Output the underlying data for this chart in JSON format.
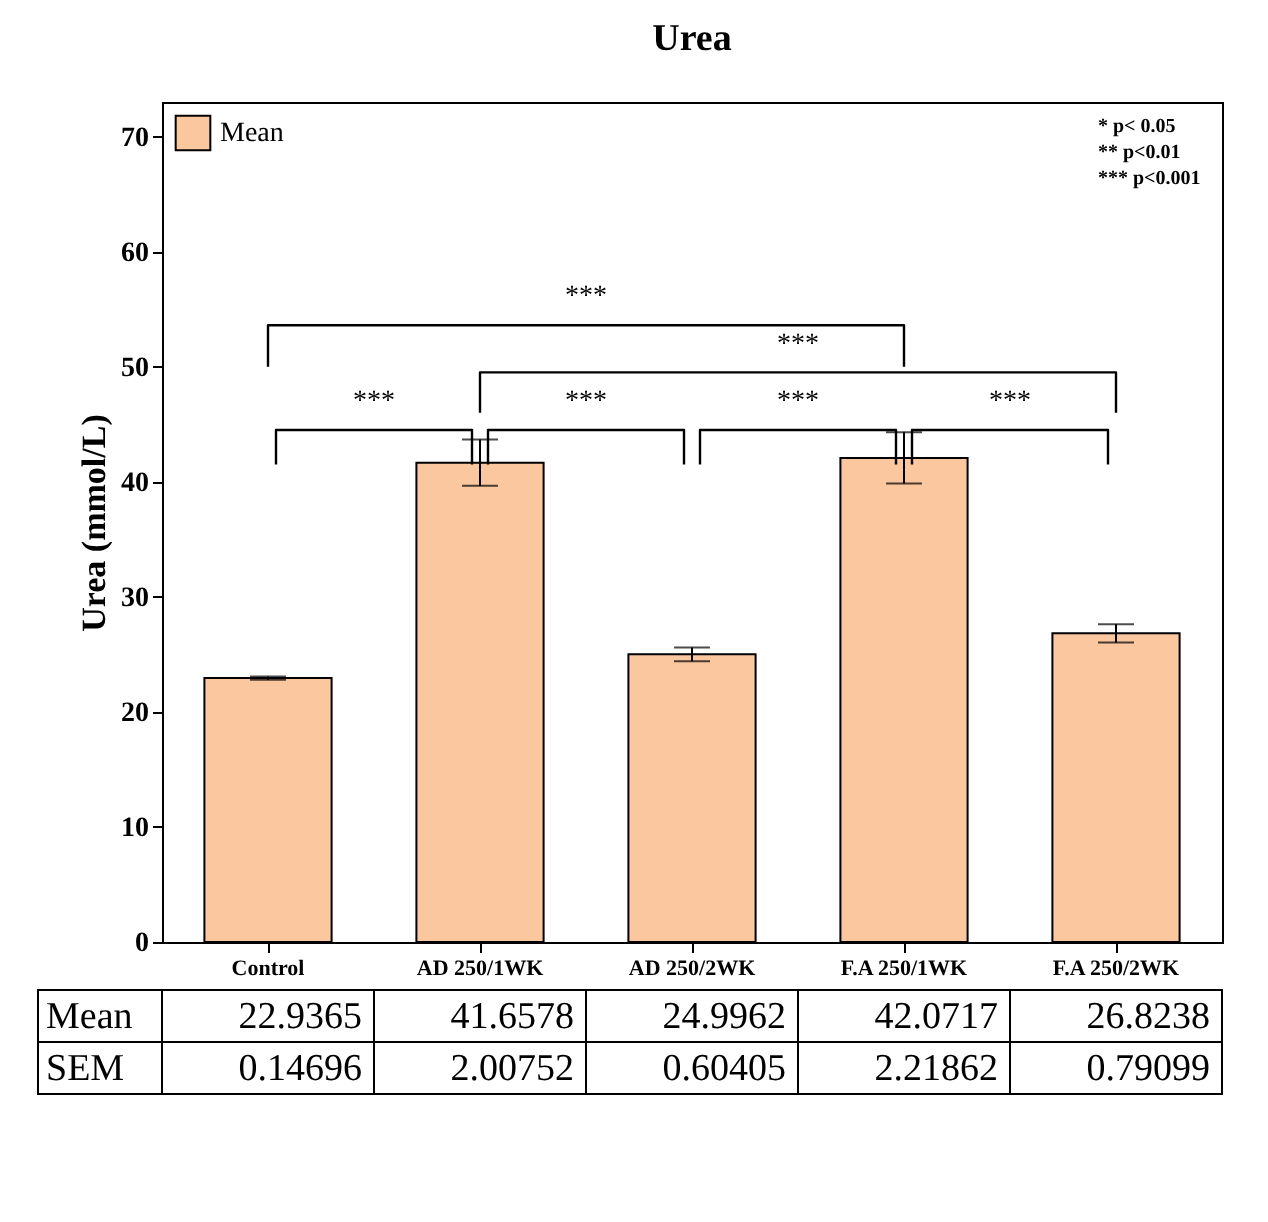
{
  "chart_data": {
    "type": "bar",
    "title": "Urea",
    "ylabel": "Urea (mmol/L)",
    "categories": [
      "Control",
      "AD 250/1WK",
      "AD 250/2WK",
      "F.A 250/1WK",
      "F.A 250/2WK"
    ],
    "series": [
      {
        "name": "Mean",
        "color": "#fac79e",
        "values": [
          22.9365,
          41.6578,
          24.9962,
          42.0717,
          26.8238
        ],
        "errors": [
          0.14696,
          2.00752,
          0.60405,
          2.21862,
          0.79099
        ]
      }
    ],
    "ylim": [
      0,
      73
    ],
    "yticks": [
      0,
      10,
      20,
      30,
      40,
      50,
      60,
      70
    ],
    "data_labels": true,
    "legend": "top left",
    "grid": false,
    "annotations": [
      "* p< 0.05",
      "** p<0.01",
      "*** p<0.001",
      "SEM",
      "0.14696",
      "2.00752",
      "0.60405",
      "2.21862",
      "0.79099",
      "***",
      "***",
      "***",
      "***",
      "***",
      "***"
    ]
  }
}
